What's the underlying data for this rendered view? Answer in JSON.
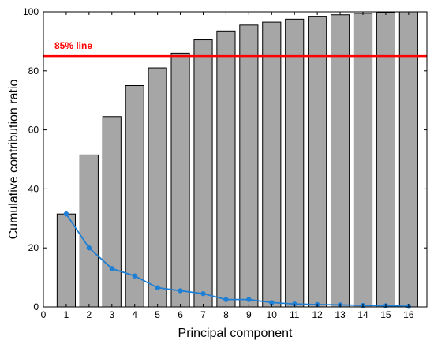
{
  "chart_data": {
    "type": "bar",
    "xlabel": "Principal component",
    "ylabel": "Cumulative contribution ratio",
    "xlim": [
      0,
      16.8
    ],
    "ylim": [
      0,
      100
    ],
    "x_ticks": [
      0,
      1,
      2,
      3,
      4,
      5,
      6,
      7,
      8,
      9,
      10,
      11,
      12,
      13,
      14,
      15,
      16
    ],
    "y_ticks": [
      0,
      20,
      40,
      60,
      80,
      100
    ],
    "categories": [
      1,
      2,
      3,
      4,
      5,
      6,
      7,
      8,
      9,
      10,
      11,
      12,
      13,
      14,
      15,
      16
    ],
    "series": [
      {
        "type": "bar",
        "values": [
          31.5,
          51.5,
          64.5,
          75,
          81,
          86,
          90.5,
          93.5,
          95.5,
          96.5,
          97.5,
          98.5,
          99,
          99.5,
          99.8,
          100
        ]
      },
      {
        "type": "line",
        "values": [
          31.5,
          20,
          13,
          10.5,
          6.5,
          5.5,
          4.5,
          2.5,
          2.5,
          1.5,
          1.0,
          0.8,
          0.7,
          0.5,
          0.4,
          0.2
        ]
      }
    ],
    "reference_line": {
      "value": 85,
      "label": "85% line",
      "color": "#ff0000"
    },
    "grid": false,
    "colors": {
      "bar_fill": "#a6a6a6",
      "bar_stroke": "#000000",
      "line": "#1f7fd4"
    }
  }
}
